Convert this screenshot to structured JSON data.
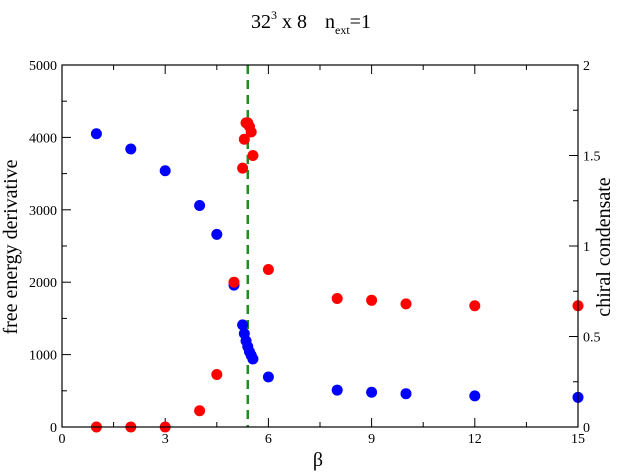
{
  "chart_data": {
    "type": "scatter",
    "title": {
      "main": "32",
      "main_sup": "3",
      "main_rest": " x 8",
      "n_label": "n",
      "n_sub": "ext",
      "n_value": "=1"
    },
    "xlabel": "β",
    "ylabel_left": "free energy derivative",
    "ylabel_right": "chiral condensate",
    "xlim": [
      0,
      15
    ],
    "ylim_left": [
      0,
      5000
    ],
    "ylim_right": [
      0,
      2
    ],
    "x_ticks": [
      "0",
      "3",
      "6",
      "9",
      "12",
      "15"
    ],
    "y_ticks_left": [
      "0",
      "1000",
      "2000",
      "3000",
      "4000",
      "5000"
    ],
    "y_ticks_right": [
      "0",
      "0.5",
      "1",
      "1.5",
      "2"
    ],
    "x_tick_values": [
      0,
      3,
      6,
      9,
      12,
      15
    ],
    "y_tick_values_left": [
      0,
      1000,
      2000,
      3000,
      4000,
      5000
    ],
    "y_tick_values_right": [
      0,
      0.5,
      1,
      1.5,
      2
    ],
    "grid": false,
    "vline": {
      "x": 5.4,
      "color": "#228b22",
      "style": "dashed"
    },
    "colors": {
      "blue": "#0000ff",
      "red": "#ff0000"
    },
    "series": [
      {
        "color": "blue",
        "axis": "left",
        "points": [
          [
            1.0,
            4050
          ],
          [
            2.0,
            3840
          ],
          [
            3.0,
            3540
          ],
          [
            4.0,
            3060
          ],
          [
            4.5,
            2660
          ],
          [
            5.0,
            1960
          ],
          [
            5.25,
            1410
          ],
          [
            5.3,
            1290
          ],
          [
            5.35,
            1190
          ],
          [
            5.4,
            1110
          ],
          [
            5.45,
            1040
          ],
          [
            5.5,
            990
          ],
          [
            5.55,
            940
          ],
          [
            6.0,
            690
          ],
          [
            8.0,
            510
          ],
          [
            9.0,
            480
          ],
          [
            10.0,
            460
          ],
          [
            12.0,
            430
          ],
          [
            15.0,
            410
          ]
        ]
      },
      {
        "color": "red",
        "axis": "right",
        "points": [
          [
            1.0,
            0.0
          ],
          [
            2.0,
            0.0
          ],
          [
            3.0,
            0.0
          ],
          [
            4.0,
            0.09
          ],
          [
            4.5,
            0.29
          ],
          [
            5.0,
            0.8
          ],
          [
            5.25,
            1.43
          ],
          [
            5.3,
            1.59
          ],
          [
            5.35,
            1.68
          ],
          [
            5.4,
            1.68
          ],
          [
            5.45,
            1.66
          ],
          [
            5.5,
            1.63
          ],
          [
            5.55,
            1.5
          ],
          [
            6.0,
            0.87
          ],
          [
            8.0,
            0.71
          ],
          [
            9.0,
            0.7
          ],
          [
            10.0,
            0.68
          ],
          [
            12.0,
            0.67
          ],
          [
            15.0,
            0.67
          ]
        ]
      }
    ]
  }
}
